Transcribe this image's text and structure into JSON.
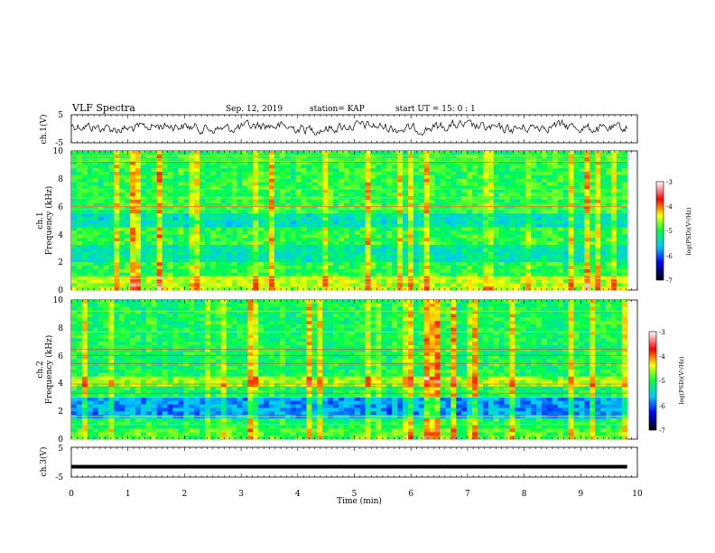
{
  "header": {
    "title": "VLF Spectra",
    "date": "Sep. 12, 2019",
    "station": "station= KAP",
    "start": "start  UT =   15: 0  : 1"
  },
  "chart_data": [
    {
      "name": "ch1-waveform",
      "type": "line",
      "ylabel": "ch.1(V)",
      "xlim": [
        0,
        10
      ],
      "ylim": [
        -5,
        5
      ],
      "yticks": [
        "5",
        "-5"
      ],
      "color": "#000000"
    },
    {
      "name": "ch1-spectrogram",
      "type": "heatmap",
      "ylabel_line1": "ch.1",
      "ylabel_line2": "Frequency (kHz)",
      "xlim": [
        0,
        10
      ],
      "ylim": [
        0,
        10
      ],
      "yticks": [
        "0",
        "2",
        "4",
        "6",
        "8",
        "10"
      ],
      "colorbar": {
        "label": "log(PSD)(V²/Hz)",
        "range": [
          -7,
          -3
        ],
        "ticks": [
          "-3",
          "-4",
          "-5",
          "-6",
          "-7"
        ]
      }
    },
    {
      "name": "ch2-spectrogram",
      "type": "heatmap",
      "ylabel_line1": "ch.2",
      "ylabel_line2": "Frequency (kHz)",
      "xlim": [
        0,
        10
      ],
      "ylim": [
        0,
        10
      ],
      "yticks": [
        "0",
        "2",
        "4",
        "6",
        "8",
        "10"
      ],
      "colorbar": {
        "label": "log(PSD)(V²/Hz)",
        "range": [
          -7,
          -3
        ],
        "ticks": [
          "-3",
          "-4",
          "-5",
          "-6",
          "-7"
        ]
      }
    },
    {
      "name": "ch3-waveform",
      "type": "line",
      "ylabel": "ch.3(V)",
      "xlim": [
        0,
        10
      ],
      "ylim": [
        -5,
        5
      ],
      "yticks": [
        "5",
        "-5"
      ],
      "value": -1.5,
      "color": "#000000"
    }
  ],
  "xaxis": {
    "label": "Time (min)",
    "ticks": [
      "0",
      "1",
      "2",
      "3",
      "4",
      "5",
      "6",
      "7",
      "8",
      "9",
      "10"
    ]
  }
}
